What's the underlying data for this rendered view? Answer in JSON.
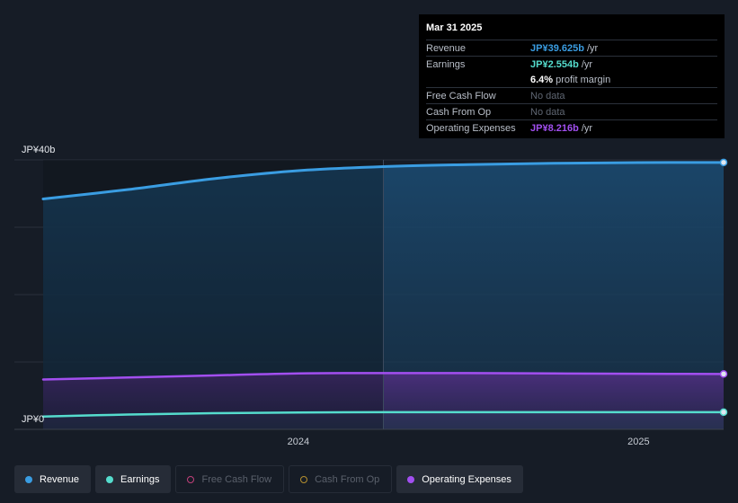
{
  "chart_data": {
    "type": "area",
    "ylim": [
      0,
      40
    ],
    "y_axis_labels": [
      "JP¥40b",
      "JP¥0"
    ],
    "x_ticks": [
      {
        "label": "2024",
        "x": 2024.0
      },
      {
        "label": "2025",
        "x": 2025.0
      }
    ],
    "x_range": [
      2023.25,
      2025.25
    ],
    "highlight_start": 2024.25,
    "series": [
      {
        "name": "Revenue",
        "color": "#3a9de2",
        "points": [
          [
            2023.25,
            34.2
          ],
          [
            2023.5,
            35.6
          ],
          [
            2023.75,
            37.2
          ],
          [
            2024.0,
            38.4
          ],
          [
            2024.25,
            39.0
          ],
          [
            2024.5,
            39.3
          ],
          [
            2024.75,
            39.5
          ],
          [
            2025.0,
            39.6
          ],
          [
            2025.25,
            39.625
          ]
        ]
      },
      {
        "name": "Earnings",
        "color": "#55dccd",
        "points": [
          [
            2023.25,
            1.9
          ],
          [
            2023.5,
            2.2
          ],
          [
            2023.75,
            2.4
          ],
          [
            2024.0,
            2.5
          ],
          [
            2024.25,
            2.55
          ],
          [
            2024.5,
            2.55
          ],
          [
            2024.75,
            2.55
          ],
          [
            2025.0,
            2.554
          ],
          [
            2025.25,
            2.554
          ]
        ]
      },
      {
        "name": "Operating Expenses",
        "color": "#a24ff0",
        "points": [
          [
            2023.25,
            7.4
          ],
          [
            2023.5,
            7.7
          ],
          [
            2023.75,
            8.0
          ],
          [
            2024.0,
            8.3
          ],
          [
            2024.25,
            8.35
          ],
          [
            2024.5,
            8.35
          ],
          [
            2024.75,
            8.3
          ],
          [
            2025.0,
            8.25
          ],
          [
            2025.25,
            8.216
          ]
        ]
      }
    ]
  },
  "tooltip": {
    "date": "Mar 31 2025",
    "revenue": {
      "label": "Revenue",
      "value": "JP¥39.625b",
      "unit": "/yr",
      "color": "#3a9de2"
    },
    "earnings": {
      "label": "Earnings",
      "value": "JP¥2.554b",
      "unit": "/yr",
      "color": "#55dccd"
    },
    "margin": {
      "value": "6.4%",
      "text": "profit margin"
    },
    "fcf": {
      "label": "Free Cash Flow",
      "value": "No data"
    },
    "cfo": {
      "label": "Cash From Op",
      "value": "No data"
    },
    "opex": {
      "label": "Operating Expenses",
      "value": "JP¥8.216b",
      "unit": "/yr",
      "color": "#a24ff0"
    }
  },
  "legend": [
    {
      "label": "Revenue",
      "color": "#3a9de2",
      "active": true
    },
    {
      "label": "Earnings",
      "color": "#55dccd",
      "active": true
    },
    {
      "label": "Free Cash Flow",
      "color": "#c2407a",
      "active": false
    },
    {
      "label": "Cash From Op",
      "color": "#b5902f",
      "active": false
    },
    {
      "label": "Operating Expenses",
      "color": "#a24ff0",
      "active": true
    }
  ]
}
